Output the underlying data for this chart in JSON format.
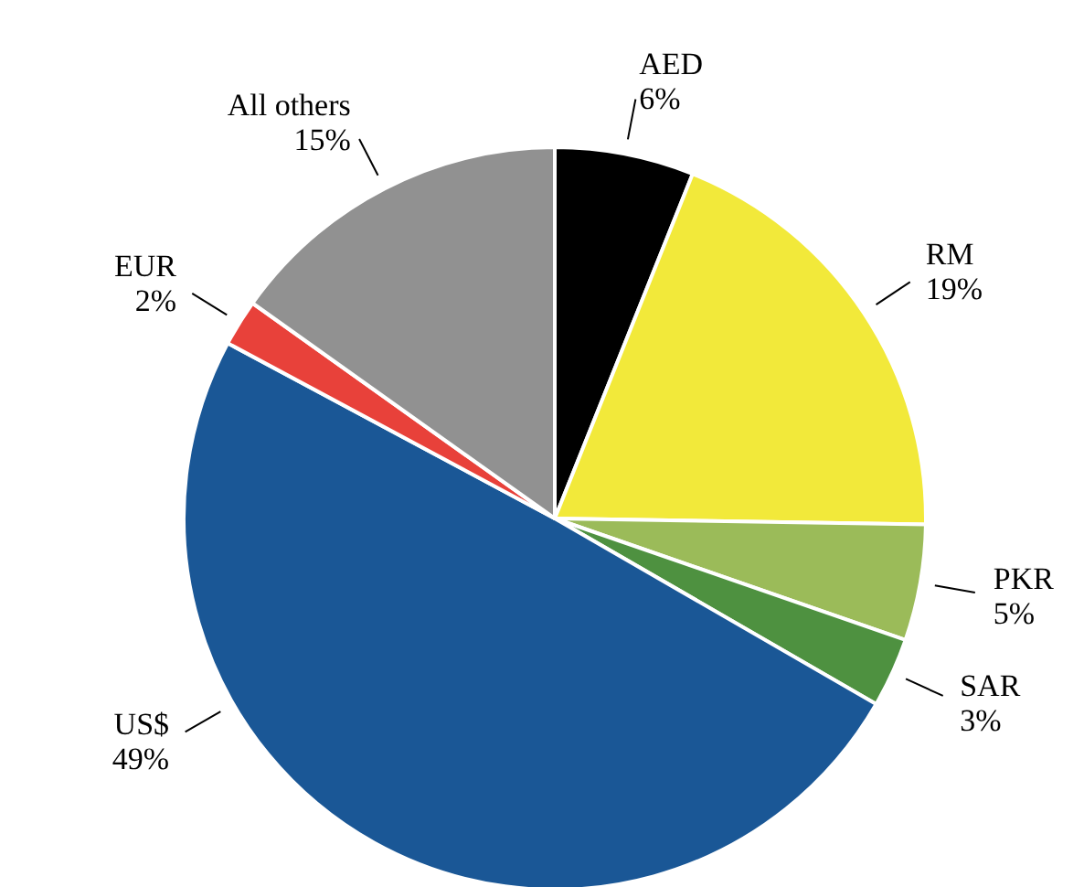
{
  "chart_data": {
    "type": "pie",
    "categories": [
      "AED",
      "RM",
      "PKR",
      "SAR",
      "US$",
      "EUR",
      "All others"
    ],
    "values": [
      6,
      19,
      5,
      3,
      49,
      2,
      15
    ],
    "colors": [
      "#000000",
      "#f2e93a",
      "#9bbb59",
      "#4e9140",
      "#1a5796",
      "#e8413a",
      "#919191"
    ],
    "value_labels": [
      "6%",
      "19%",
      "5%",
      "3%",
      "49%",
      "2%",
      "15%"
    ]
  }
}
